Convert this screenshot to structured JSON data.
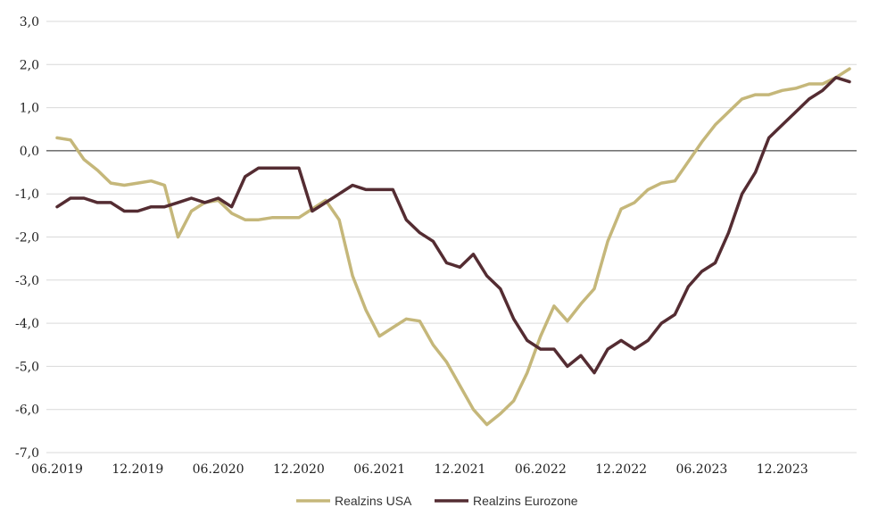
{
  "chart_data": {
    "type": "line",
    "x": [
      "06.2019",
      "07.2019",
      "08.2019",
      "09.2019",
      "10.2019",
      "11.2019",
      "12.2019",
      "01.2020",
      "02.2020",
      "03.2020",
      "04.2020",
      "05.2020",
      "06.2020",
      "07.2020",
      "08.2020",
      "09.2020",
      "10.2020",
      "11.2020",
      "12.2020",
      "01.2021",
      "02.2021",
      "03.2021",
      "04.2021",
      "05.2021",
      "06.2021",
      "07.2021",
      "08.2021",
      "09.2021",
      "10.2021",
      "11.2021",
      "12.2021",
      "01.2022",
      "02.2022",
      "03.2022",
      "04.2022",
      "05.2022",
      "06.2022",
      "07.2022",
      "08.2022",
      "09.2022",
      "10.2022",
      "11.2022",
      "12.2022",
      "01.2023",
      "02.2023",
      "03.2023",
      "04.2023",
      "05.2023",
      "06.2023",
      "07.2023",
      "08.2023",
      "09.2023",
      "10.2023",
      "11.2023",
      "12.2023",
      "01.2024",
      "02.2024",
      "03.2024",
      "04.2024",
      "05.2024"
    ],
    "series": [
      {
        "name": "Realzins USA",
        "color": "#C5B77A",
        "values": [
          0.3,
          0.25,
          -0.2,
          -0.45,
          -0.75,
          -0.8,
          -0.75,
          -0.7,
          -0.8,
          -2.0,
          -1.4,
          -1.2,
          -1.15,
          -1.45,
          -1.6,
          -1.6,
          -1.55,
          -1.55,
          -1.55,
          -1.35,
          -1.15,
          -1.6,
          -2.9,
          -3.7,
          -4.3,
          -4.1,
          -3.9,
          -3.95,
          -4.5,
          -4.9,
          -5.45,
          -6.0,
          -6.35,
          -6.1,
          -5.8,
          -5.15,
          -4.3,
          -3.6,
          -3.95,
          -3.55,
          -3.2,
          -2.1,
          -1.35,
          -1.2,
          -0.9,
          -0.75,
          -0.7,
          -0.25,
          0.2,
          0.6,
          0.9,
          1.2,
          1.3,
          1.3,
          1.4,
          1.45,
          1.55,
          1.55,
          1.7,
          1.9
        ]
      },
      {
        "name": "Realzins Eurozone",
        "color": "#542C32",
        "values": [
          -1.3,
          -1.1,
          -1.1,
          -1.2,
          -1.2,
          -1.4,
          -1.4,
          -1.3,
          -1.3,
          -1.2,
          -1.1,
          -1.2,
          -1.1,
          -1.3,
          -0.6,
          -0.4,
          -0.4,
          -0.4,
          -0.4,
          -1.4,
          -1.2,
          -1.0,
          -0.8,
          -0.9,
          -0.9,
          -0.9,
          -1.6,
          -1.9,
          -2.1,
          -2.6,
          -2.7,
          -2.4,
          -2.9,
          -3.2,
          -3.9,
          -4.4,
          -4.6,
          -4.6,
          -5.0,
          -4.75,
          -5.15,
          -4.6,
          -4.4,
          -4.6,
          -4.4,
          -4.0,
          -3.8,
          -3.15,
          -2.8,
          -2.6,
          -1.9,
          -1.0,
          -0.5,
          0.3,
          0.6,
          0.9,
          1.2,
          1.4,
          1.7,
          1.6
        ]
      }
    ],
    "x_tick_labels": [
      "06.2019",
      "12.2019",
      "06.2020",
      "12.2020",
      "06.2021",
      "12.2021",
      "06.2022",
      "12.2022",
      "06.2023",
      "12.2023"
    ],
    "y_tick_labels": [
      "3,0",
      "2,0",
      "1,0",
      "0,0",
      "-1,0",
      "-2,0",
      "-3,0",
      "-4,0",
      "-5,0",
      "-6,0",
      "-7,0"
    ],
    "ylim": [
      -7,
      3
    ],
    "grid": "horizontal",
    "legend_position": "bottom-center",
    "title": "",
    "xlabel": "",
    "ylabel": ""
  }
}
